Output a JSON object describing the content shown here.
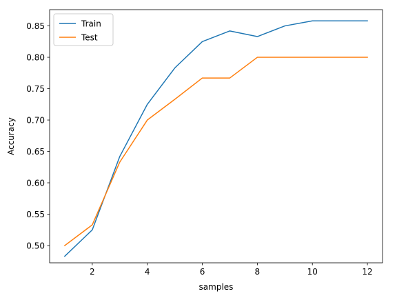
{
  "chart_data": {
    "type": "line",
    "xlabel": "samples",
    "ylabel": "Accuracy",
    "xlim": [
      0.45,
      12.55
    ],
    "ylim": [
      0.4725,
      0.8759
    ],
    "xticks": [
      2,
      4,
      6,
      8,
      10,
      12
    ],
    "yticks": [
      0.5,
      0.55,
      0.6,
      0.65,
      0.7,
      0.75,
      0.8,
      0.85
    ],
    "xtick_labels": [
      "2",
      "4",
      "6",
      "8",
      "10",
      "12"
    ],
    "ytick_labels": [
      "0.50",
      "0.55",
      "0.60",
      "0.65",
      "0.70",
      "0.75",
      "0.80",
      "0.85"
    ],
    "grid": false,
    "legend_position": "top-left",
    "series": [
      {
        "name": "Train",
        "color": "#1f77b4",
        "x": [
          1,
          2,
          3,
          4,
          5,
          6,
          7,
          8,
          9,
          10,
          11,
          12
        ],
        "y": [
          0.483,
          0.525,
          0.642,
          0.725,
          0.783,
          0.825,
          0.842,
          0.833,
          0.85,
          0.858,
          0.858,
          0.858
        ]
      },
      {
        "name": "Test",
        "color": "#ff7f0e",
        "x": [
          1,
          2,
          3,
          4,
          5,
          6,
          7,
          8,
          9,
          10,
          11,
          12
        ],
        "y": [
          0.5,
          0.533,
          0.633,
          0.7,
          0.733,
          0.767,
          0.767,
          0.8,
          0.8,
          0.8,
          0.8,
          0.8
        ]
      }
    ]
  }
}
